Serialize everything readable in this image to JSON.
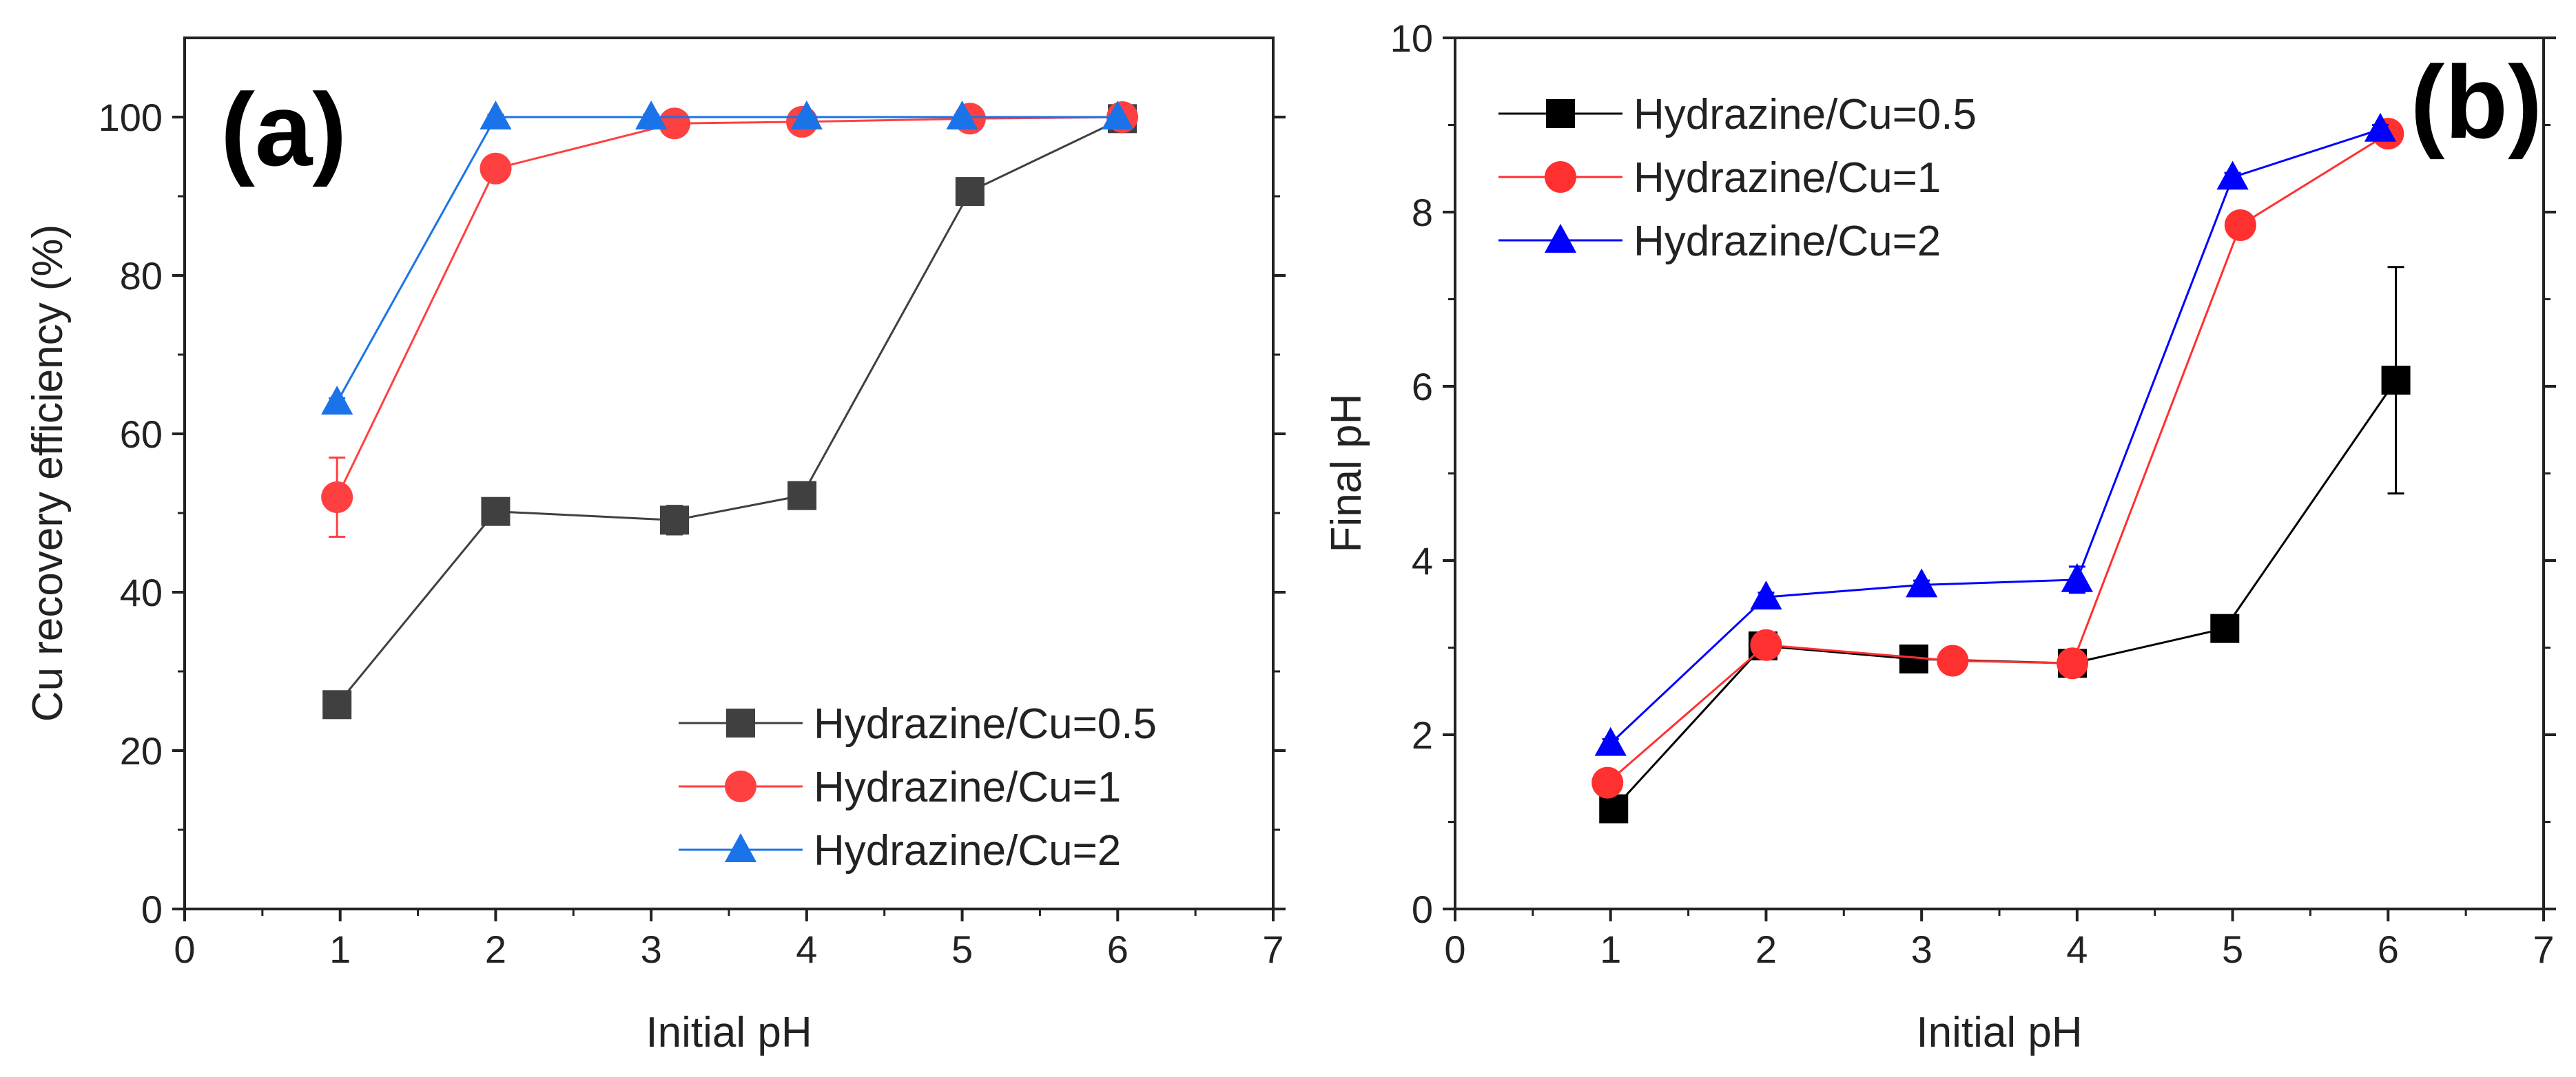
{
  "chart_data": [
    {
      "type": "line",
      "panel_label": "(a)",
      "xlabel": "Initial pH",
      "ylabel": "Cu recovery efficiency (%)",
      "xlim": [
        0,
        7
      ],
      "ylim": [
        0,
        110
      ],
      "xticks": [
        0,
        1,
        2,
        3,
        4,
        5,
        6,
        7
      ],
      "yticks": [
        0,
        20,
        40,
        60,
        80,
        100
      ],
      "legend_position": "bottom-right",
      "series": [
        {
          "name": "Hydrazine/Cu=0.5",
          "color": "#404040",
          "marker": "square",
          "x": [
            0.98,
            2.0,
            3.15,
            3.97,
            5.05,
            6.03
          ],
          "y": [
            25.8,
            50.2,
            49.1,
            52.2,
            90.6,
            99.8
          ],
          "err": [
            1.0,
            0.8,
            1.8,
            0.8,
            0.8,
            0.5
          ]
        },
        {
          "name": "Hydrazine/Cu=1",
          "color": "#ff4040",
          "marker": "circle",
          "x": [
            0.98,
            2.0,
            3.15,
            3.97,
            5.05,
            6.03
          ],
          "y": [
            52.0,
            93.5,
            99.2,
            99.4,
            99.8,
            100.0
          ],
          "err": [
            5.0,
            1.0,
            0.5,
            0.5,
            0.3,
            0.3
          ]
        },
        {
          "name": "Hydrazine/Cu=2",
          "color": "#1a73e8",
          "marker": "triangle",
          "x": [
            0.98,
            2.0,
            3.0,
            4.0,
            5.0,
            6.0
          ],
          "y": [
            64.0,
            100.0,
            100.0,
            100.0,
            100.0,
            100.0
          ],
          "err": [
            0.5,
            0.3,
            0.3,
            0.3,
            0.3,
            0.3
          ]
        }
      ]
    },
    {
      "type": "line",
      "panel_label": "(b)",
      "xlabel": "Initial pH",
      "ylabel": "Final pH",
      "xlim": [
        0,
        7
      ],
      "ylim": [
        0,
        10
      ],
      "xticks": [
        0,
        1,
        2,
        3,
        4,
        5,
        6,
        7
      ],
      "yticks": [
        0,
        2,
        4,
        6,
        8,
        10
      ],
      "legend_position": "top-left",
      "series": [
        {
          "name": "Hydrazine/Cu=0.5",
          "color": "#000000",
          "marker": "square",
          "x": [
            1.02,
            1.98,
            2.95,
            3.97,
            4.95,
            6.05
          ],
          "y": [
            1.15,
            3.02,
            2.87,
            2.82,
            3.22,
            6.07
          ],
          "err": [
            0.05,
            0.05,
            0.05,
            0.05,
            0.05,
            1.3
          ]
        },
        {
          "name": "Hydrazine/Cu=1",
          "color": "#ff3030",
          "marker": "circle",
          "x": [
            0.98,
            2.0,
            3.2,
            3.97,
            5.05,
            6.0
          ],
          "y": [
            1.45,
            3.03,
            2.85,
            2.82,
            7.85,
            8.9
          ],
          "err": [
            0.05,
            0.05,
            0.05,
            0.05,
            0.05,
            0.05
          ]
        },
        {
          "name": "Hydrazine/Cu=2",
          "color": "#0000ff",
          "marker": "triangle",
          "x": [
            1.0,
            2.0,
            3.0,
            4.0,
            5.0,
            5.95
          ],
          "y": [
            1.9,
            3.58,
            3.72,
            3.78,
            8.4,
            8.95
          ],
          "err": [
            0.05,
            0.05,
            0.05,
            0.15,
            0.05,
            0.05
          ]
        }
      ]
    }
  ]
}
